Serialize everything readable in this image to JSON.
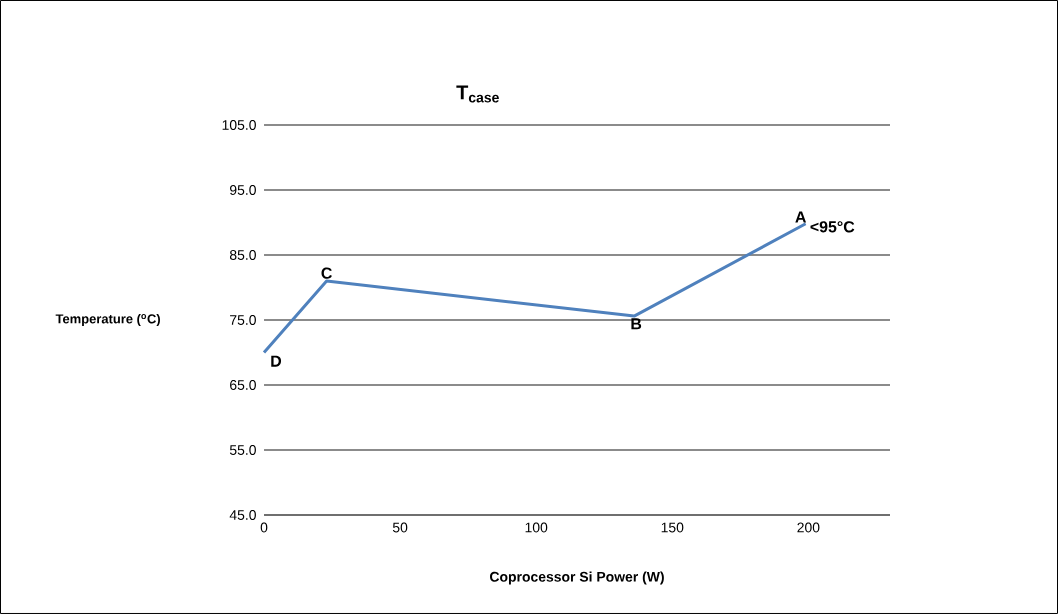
{
  "chart_data": {
    "type": "line",
    "title": "T$_{case}$",
    "xlabel": "Coprocessor Si Power (W)",
    "ylabel": "Temperature ($^{o}$C)",
    "x": [
      0,
      23,
      136,
      199
    ],
    "series": [
      {
        "color": "#4f81bd",
        "values": [
          70,
          81,
          75.6,
          89.8
        ]
      }
    ],
    "xlim": [
      0,
      230
    ],
    "xticks": [
      0,
      50,
      100,
      150,
      200
    ],
    "ylim": [
      45,
      105
    ],
    "yticks": [
      {
        "value": 45,
        "label": "45.0"
      },
      {
        "value": 55,
        "label": "55.0"
      },
      {
        "value": 65,
        "label": "65.0"
      },
      {
        "value": 75,
        "label": "75.0"
      },
      {
        "value": 85,
        "label": "85.0"
      },
      {
        "value": 95,
        "label": "95.0"
      },
      {
        "value": 105,
        "label": "105.0"
      }
    ],
    "grid": "y",
    "marker": "none",
    "line_style": "solid",
    "annotations": [
      {
        "text": "A",
        "x": 199,
        "y": 89.8
      },
      {
        "text": "<95°C",
        "x": 199,
        "y": 89.8
      },
      {
        "text": "B",
        "x": 136,
        "y": 75.6
      },
      {
        "text": "C",
        "x": 23,
        "y": 81
      },
      {
        "text": "D",
        "x": 0,
        "y": 70
      }
    ]
  }
}
